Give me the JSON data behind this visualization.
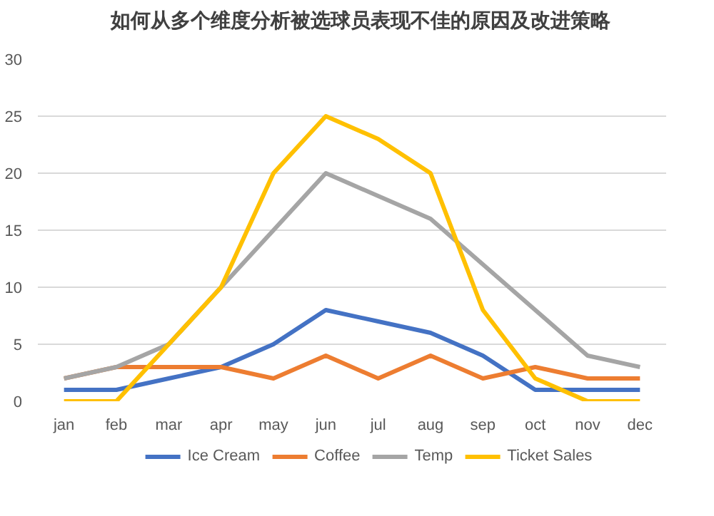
{
  "chart_data": {
    "type": "line",
    "title": "如何从多个维度分析被选球员表现不佳的原因及改进策略",
    "categories": [
      "jan",
      "feb",
      "mar",
      "apr",
      "may",
      "jun",
      "jul",
      "aug",
      "sep",
      "oct",
      "nov",
      "dec"
    ],
    "series": [
      {
        "name": "Ice Cream",
        "color": "#4472c4",
        "values": [
          1,
          1,
          2,
          3,
          5,
          8,
          7,
          6,
          4,
          1,
          1,
          1
        ]
      },
      {
        "name": "Coffee",
        "color": "#ed7d31",
        "values": [
          2,
          3,
          3,
          3,
          2,
          4,
          2,
          4,
          2,
          3,
          2,
          2
        ]
      },
      {
        "name": "Temp",
        "color": "#a5a5a5",
        "values": [
          2,
          3,
          5,
          10,
          15,
          20,
          18,
          16,
          12,
          8,
          4,
          3
        ]
      },
      {
        "name": "Ticket Sales",
        "color": "#ffc000",
        "values": [
          0,
          0,
          5,
          10,
          20,
          25,
          23,
          20,
          8,
          2,
          0,
          0
        ]
      }
    ],
    "ylim": [
      0,
      30
    ],
    "yticks": [
      0,
      5,
      10,
      15,
      20,
      25,
      30
    ],
    "grid": "y",
    "legend": "bottom"
  }
}
